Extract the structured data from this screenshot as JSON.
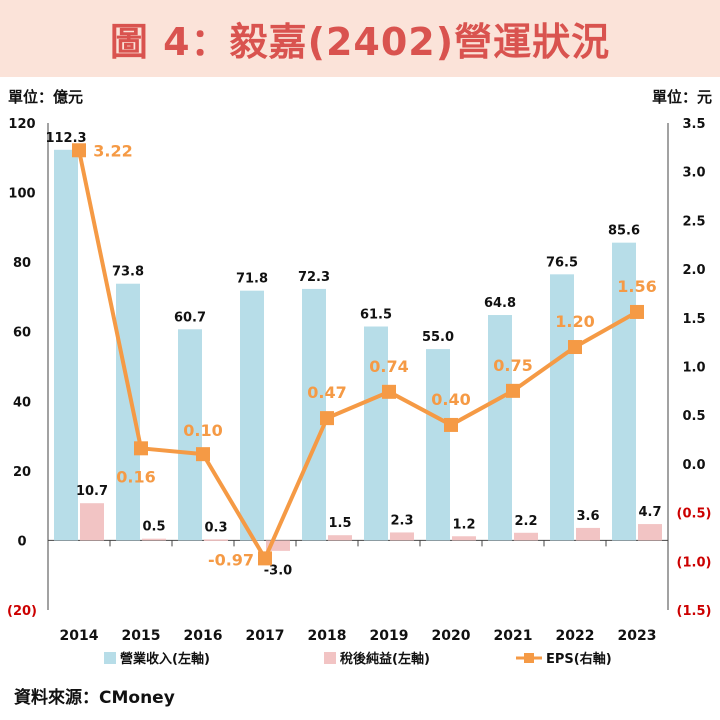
{
  "title": "圖 4：毅嘉(2402)營運狀況",
  "left_unit": "單位：億元",
  "right_unit": "單位：元",
  "source": "資料來源：CMoney",
  "colors": {
    "revenue": "#b7dde8",
    "net_income": "#f2c4c4",
    "eps": "#f59a45",
    "title_bg": "#fbe3d9",
    "title_text": "#d9534f",
    "negative_tick": "#cc0000"
  },
  "chart_data": {
    "type": "bar+line",
    "categories": [
      "2014",
      "2015",
      "2016",
      "2017",
      "2018",
      "2019",
      "2020",
      "2021",
      "2022",
      "2023"
    ],
    "series": [
      {
        "name": "營業收入(左軸)",
        "axis": "left",
        "kind": "bar",
        "values": [
          112.3,
          73.8,
          60.7,
          71.8,
          72.3,
          61.5,
          55.0,
          64.8,
          76.5,
          85.6
        ],
        "labels": [
          "112.3",
          "73.8",
          "60.7",
          "71.8",
          "72.3",
          "61.5",
          "55.0",
          "64.8",
          "76.5",
          "85.6"
        ]
      },
      {
        "name": "稅後純益(左軸)",
        "axis": "left",
        "kind": "bar",
        "values": [
          10.7,
          0.5,
          0.3,
          -3.0,
          1.5,
          2.3,
          1.2,
          2.2,
          3.6,
          4.7
        ],
        "labels": [
          "10.7",
          "0.5",
          "0.3",
          "-3.0",
          "1.5",
          "2.3",
          "1.2",
          "2.2",
          "3.6",
          "4.7"
        ]
      },
      {
        "name": "EPS(右軸)",
        "axis": "right",
        "kind": "line",
        "values": [
          3.22,
          0.16,
          0.1,
          -0.97,
          0.47,
          0.74,
          0.4,
          0.75,
          1.2,
          1.56
        ],
        "labels": [
          "3.22",
          "0.16",
          "0.10",
          "-0.97",
          "0.47",
          "0.74",
          "0.40",
          "0.75",
          "1.20",
          "1.56"
        ]
      }
    ],
    "left_axis": {
      "min": -20,
      "max": 120,
      "ticks": [
        {
          "value": 120,
          "label": "120"
        },
        {
          "value": 100,
          "label": "100"
        },
        {
          "value": 80,
          "label": "80"
        },
        {
          "value": 60,
          "label": "60"
        },
        {
          "value": 40,
          "label": "40"
        },
        {
          "value": 20,
          "label": "20"
        },
        {
          "value": 0,
          "label": "0"
        },
        {
          "value": -20,
          "label": "(20)"
        }
      ]
    },
    "right_axis": {
      "min": -1.5,
      "max": 3.5,
      "ticks": [
        {
          "value": 3.5,
          "label": "3.5"
        },
        {
          "value": 3.0,
          "label": "3.0"
        },
        {
          "value": 2.5,
          "label": "2.5"
        },
        {
          "value": 2.0,
          "label": "2.0"
        },
        {
          "value": 1.5,
          "label": "1.5"
        },
        {
          "value": 1.0,
          "label": "1.0"
        },
        {
          "value": 0.5,
          "label": "0.5"
        },
        {
          "value": 0.0,
          "label": "0.0"
        },
        {
          "value": -0.5,
          "label": "(0.5)"
        },
        {
          "value": -1.0,
          "label": "(1.0)"
        },
        {
          "value": -1.5,
          "label": "(1.5)"
        }
      ]
    },
    "legend_position": "bottom",
    "grid": false
  }
}
